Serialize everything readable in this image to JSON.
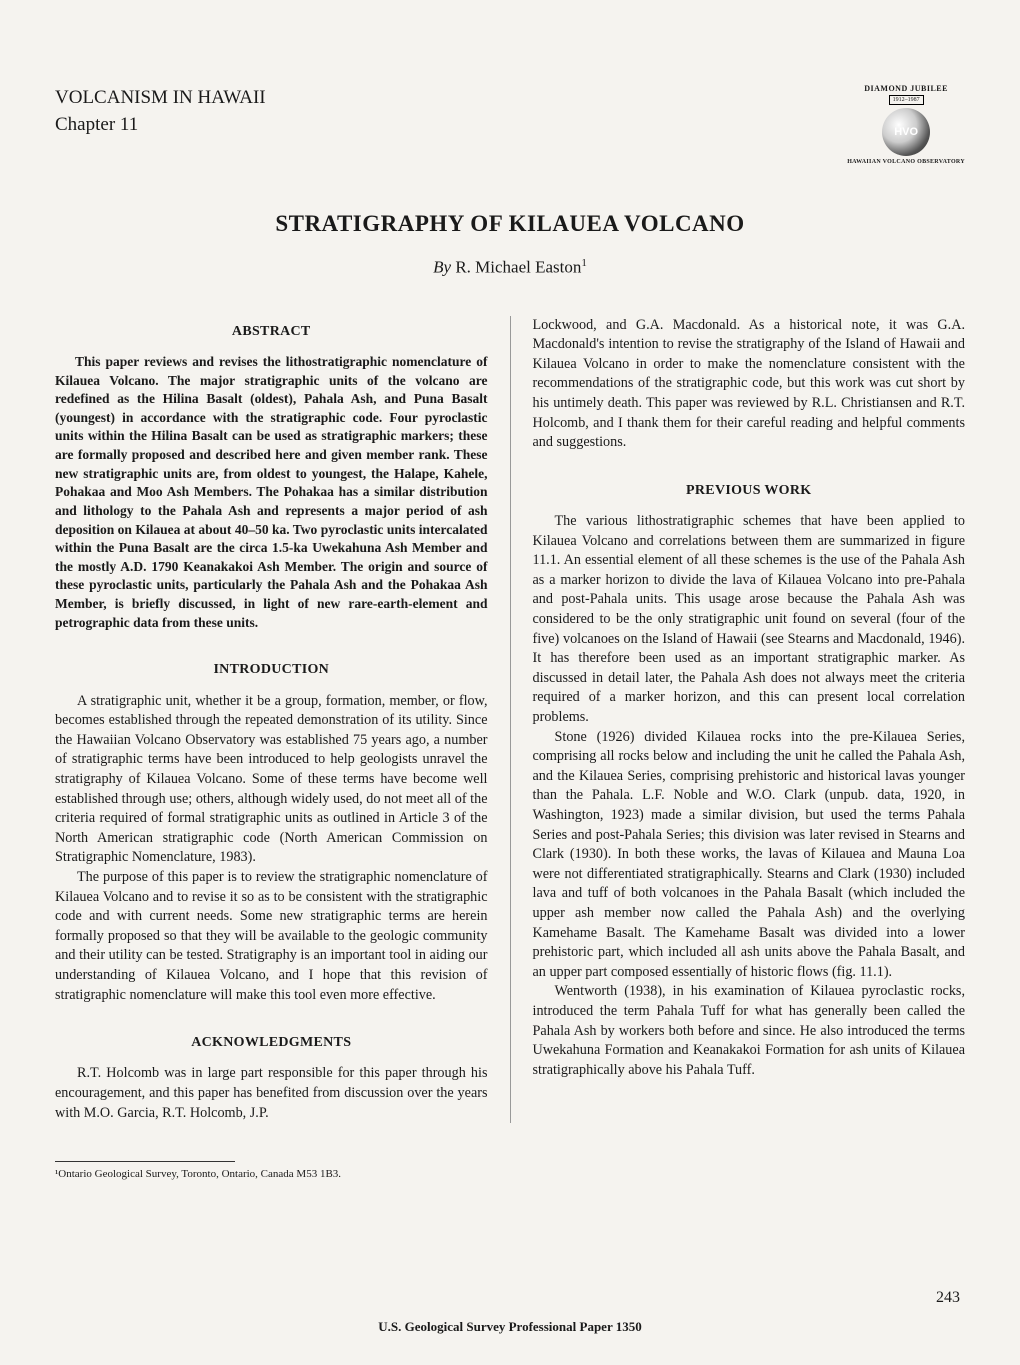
{
  "header": {
    "series": "VOLCANISM IN HAWAII",
    "chapter": "Chapter 11",
    "logo": {
      "jubilee": "DIAMOND JUBILEE",
      "years": "1912–1987",
      "initials": "HVO",
      "caption": "HAWAIIAN VOLCANO OBSERVATORY"
    }
  },
  "title": "STRATIGRAPHY OF KILAUEA VOLCANO",
  "byline": {
    "by": "By",
    "author": "R. Michael Easton",
    "note": "1"
  },
  "abstract": {
    "heading": "ABSTRACT",
    "text": "This paper reviews and revises the lithostratigraphic nomenclature of Kilauea Volcano. The major stratigraphic units of the volcano are redefined as the Hilina Basalt (oldest), Pahala Ash, and Puna Basalt (youngest) in accordance with the stratigraphic code. Four pyroclastic units within the Hilina Basalt can be used as stratigraphic markers; these are formally proposed and described here and given member rank. These new stratigraphic units are, from oldest to youngest, the Halape, Kahele, Pohakaa and Moo Ash Members. The Pohakaa has a similar distribution and lithology to the Pahala Ash and represents a major period of ash deposition on Kilauea at about 40–50 ka. Two pyroclastic units intercalated within the Puna Basalt are the circa 1.5-ka Uwekahuna Ash Member and the mostly A.D. 1790 Keanakakoi Ash Member. The origin and source of these pyroclastic units, particularly the Pahala Ash and the Pohakaa Ash Member, is briefly discussed, in light of new rare-earth-element and petrographic data from these units."
  },
  "intro": {
    "heading": "INTRODUCTION",
    "p1": "A stratigraphic unit, whether it be a group, formation, member, or flow, becomes established through the repeated demonstration of its utility. Since the Hawaiian Volcano Observatory was established 75 years ago, a number of stratigraphic terms have been introduced to help geologists unravel the stratigraphy of Kilauea Volcano. Some of these terms have become well established through use; others, although widely used, do not meet all of the criteria required of formal stratigraphic units as outlined in Article 3 of the North American stratigraphic code (North American Commission on Stratigraphic Nomenclature, 1983).",
    "p2": "The purpose of this paper is to review the stratigraphic nomenclature of Kilauea Volcano and to revise it so as to be consistent with the stratigraphic code and with current needs. Some new stratigraphic terms are herein formally proposed so that they will be available to the geologic community and their utility can be tested. Stratigraphy is an important tool in aiding our understanding of Kilauea Volcano, and I hope that this revision of stratigraphic nomenclature will make this tool even more effective."
  },
  "ack": {
    "heading": "ACKNOWLEDGMENTS",
    "p1": "R.T. Holcomb was in large part responsible for this paper through his encouragement, and this paper has benefited from discussion over the years with M.O. Garcia, R.T. Holcomb, J.P."
  },
  "col2": {
    "cont": "Lockwood, and G.A. Macdonald. As a historical note, it was G.A. Macdonald's intention to revise the stratigraphy of the Island of Hawaii and Kilauea Volcano in order to make the nomenclature consistent with the recommendations of the stratigraphic code, but this work was cut short by his untimely death. This paper was reviewed by R.L. Christiansen and R.T. Holcomb, and I thank them for their careful reading and helpful comments and suggestions."
  },
  "prev": {
    "heading": "PREVIOUS WORK",
    "p1": "The various lithostratigraphic schemes that have been applied to Kilauea Volcano and correlations between them are summarized in figure 11.1. An essential element of all these schemes is the use of the Pahala Ash as a marker horizon to divide the lava of Kilauea Volcano into pre-Pahala and post-Pahala units. This usage arose because the Pahala Ash was considered to be the only stratigraphic unit found on several (four of the five) volcanoes on the Island of Hawaii (see Stearns and Macdonald, 1946). It has therefore been used as an important stratigraphic marker. As discussed in detail later, the Pahala Ash does not always meet the criteria required of a marker horizon, and this can present local correlation problems.",
    "p2": "Stone (1926) divided Kilauea rocks into the pre-Kilauea Series, comprising all rocks below and including the unit he called the Pahala Ash, and the Kilauea Series, comprising prehistoric and historical lavas younger than the Pahala. L.F. Noble and W.O. Clark (unpub. data, 1920, in Washington, 1923) made a similar division, but used the terms Pahala Series and post-Pahala Series; this division was later revised in Stearns and Clark (1930). In both these works, the lavas of Kilauea and Mauna Loa were not differentiated stratigraphically. Stearns and Clark (1930) included lava and tuff of both volcanoes in the Pahala Basalt (which included the upper ash member now called the Pahala Ash) and the overlying Kamehame Basalt. The Kamehame Basalt was divided into a lower prehistoric part, which included all ash units above the Pahala Basalt, and an upper part composed essentially of historic flows (fig. 11.1).",
    "p3": "Wentworth (1938), in his examination of Kilauea pyroclastic rocks, introduced the term Pahala Tuff for what has generally been called the Pahala Ash by workers both before and since. He also introduced the terms Uwekahuna Formation and Keanakakoi Formation for ash units of Kilauea stratigraphically above his Pahala Tuff."
  },
  "footnote": "¹Ontario Geological Survey, Toronto, Ontario, Canada M53 1B3.",
  "page_number": "243",
  "footer": "U.S. Geological Survey Professional Paper 1350"
}
